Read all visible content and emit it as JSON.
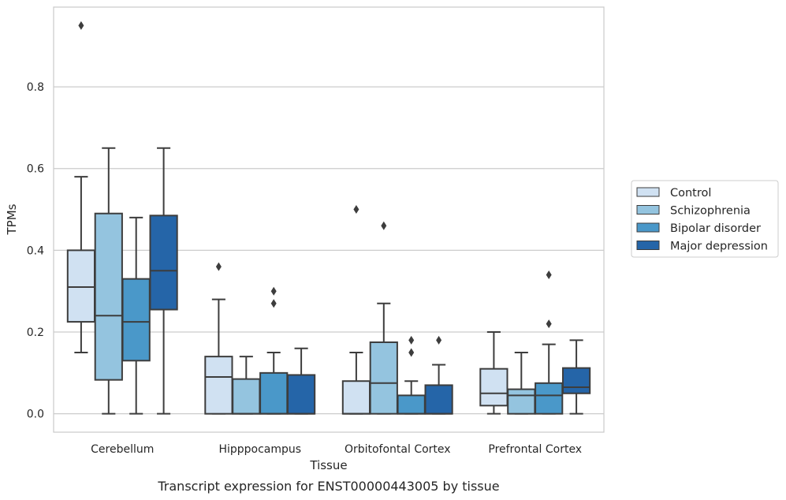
{
  "chart_data": {
    "type": "boxplot",
    "title": "Transcript expression for ENST00000443005 by tissue",
    "xlabel": "Tissue",
    "ylabel": "TPMs",
    "ylim": [
      -0.045,
      0.995
    ],
    "yticks": [
      "0.0",
      "0.2",
      "0.4",
      "0.6",
      "0.8"
    ],
    "grid": "horizontal",
    "legend_position": "right",
    "categories": [
      "Cerebellum",
      "Hipppocampus",
      "Orbitofontal Cortex",
      "Prefrontal Cortex"
    ],
    "series": [
      {
        "name": "Control",
        "color": "#d0e1f2",
        "boxes": [
          {
            "whisker_low": 0.15,
            "q1": 0.225,
            "median": 0.31,
            "q3": 0.4,
            "whisker_high": 0.58,
            "outliers": [
              0.95
            ]
          },
          {
            "whisker_low": 0.0,
            "q1": 0.0,
            "median": 0.09,
            "q3": 0.14,
            "whisker_high": 0.28,
            "outliers": [
              0.36
            ]
          },
          {
            "whisker_low": 0.0,
            "q1": 0.0,
            "median": 0.0,
            "q3": 0.08,
            "whisker_high": 0.15,
            "outliers": [
              0.5
            ]
          },
          {
            "whisker_low": 0.0,
            "q1": 0.02,
            "median": 0.05,
            "q3": 0.11,
            "whisker_high": 0.2,
            "outliers": []
          }
        ]
      },
      {
        "name": "Schizophrenia",
        "color": "#94c4df",
        "boxes": [
          {
            "whisker_low": 0.0,
            "q1": 0.083,
            "median": 0.24,
            "q3": 0.49,
            "whisker_high": 0.65,
            "outliers": []
          },
          {
            "whisker_low": 0.0,
            "q1": 0.0,
            "median": 0.0,
            "q3": 0.085,
            "whisker_high": 0.14,
            "outliers": []
          },
          {
            "whisker_low": 0.0,
            "q1": 0.0,
            "median": 0.075,
            "q3": 0.175,
            "whisker_high": 0.27,
            "outliers": [
              0.46
            ]
          },
          {
            "whisker_low": 0.0,
            "q1": 0.0,
            "median": 0.045,
            "q3": 0.06,
            "whisker_high": 0.15,
            "outliers": []
          }
        ]
      },
      {
        "name": "Bipolar disorder",
        "color": "#4a98c9",
        "boxes": [
          {
            "whisker_low": 0.0,
            "q1": 0.13,
            "median": 0.225,
            "q3": 0.33,
            "whisker_high": 0.48,
            "outliers": []
          },
          {
            "whisker_low": 0.0,
            "q1": 0.0,
            "median": 0.0,
            "q3": 0.1,
            "whisker_high": 0.15,
            "outliers": [
              0.27,
              0.3
            ]
          },
          {
            "whisker_low": 0.0,
            "q1": 0.0,
            "median": 0.0,
            "q3": 0.045,
            "whisker_high": 0.08,
            "outliers": [
              0.15,
              0.18
            ]
          },
          {
            "whisker_low": 0.0,
            "q1": 0.0,
            "median": 0.045,
            "q3": 0.075,
            "whisker_high": 0.17,
            "outliers": [
              0.22,
              0.34
            ]
          }
        ]
      },
      {
        "name": "Major depression",
        "color": "#2565a8",
        "boxes": [
          {
            "whisker_low": 0.0,
            "q1": 0.255,
            "median": 0.35,
            "q3": 0.485,
            "whisker_high": 0.65,
            "outliers": []
          },
          {
            "whisker_low": 0.0,
            "q1": 0.0,
            "median": 0.0,
            "q3": 0.095,
            "whisker_high": 0.16,
            "outliers": []
          },
          {
            "whisker_low": 0.0,
            "q1": 0.0,
            "median": 0.0,
            "q3": 0.07,
            "whisker_high": 0.12,
            "outliers": [
              0.18
            ]
          },
          {
            "whisker_low": 0.0,
            "q1": 0.05,
            "median": 0.065,
            "q3": 0.112,
            "whisker_high": 0.18,
            "outliers": []
          }
        ]
      }
    ]
  }
}
